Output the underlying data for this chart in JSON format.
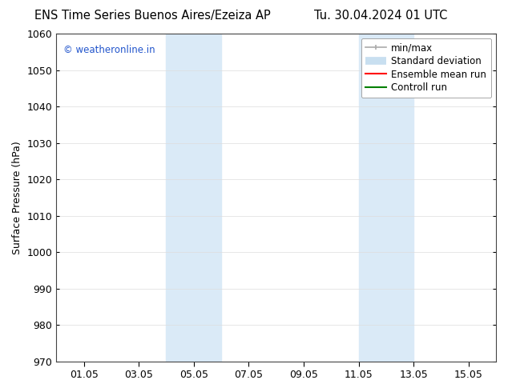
{
  "title_left": "ENS Time Series Buenos Aires/Ezeiza AP",
  "title_right": "Tu. 30.04.2024 01 UTC",
  "ylabel": "Surface Pressure (hPa)",
  "ylim": [
    970,
    1060
  ],
  "yticks": [
    970,
    980,
    990,
    1000,
    1010,
    1020,
    1030,
    1040,
    1050,
    1060
  ],
  "xlim": [
    0,
    16
  ],
  "xtick_labels": [
    "01.05",
    "03.05",
    "05.05",
    "07.05",
    "09.05",
    "11.05",
    "13.05",
    "15.05"
  ],
  "xtick_positions": [
    1,
    3,
    5,
    7,
    9,
    11,
    13,
    15
  ],
  "shaded_bands": [
    {
      "xmin": 4.0,
      "xmax": 6.0
    },
    {
      "xmin": 11.0,
      "xmax": 13.0
    }
  ],
  "shaded_color": "#daeaf7",
  "watermark": "© weatheronline.in",
  "watermark_color": "#2255cc",
  "legend_items": [
    {
      "label": "min/max",
      "color": "#aaaaaa",
      "lw": 1.2,
      "style": "cap"
    },
    {
      "label": "Standard deviation",
      "color": "#c8dff0",
      "lw": 7,
      "style": "bar"
    },
    {
      "label": "Ensemble mean run",
      "color": "red",
      "lw": 1.5,
      "style": "line"
    },
    {
      "label": "Controll run",
      "color": "green",
      "lw": 1.5,
      "style": "line"
    }
  ],
  "bg_color": "#ffffff",
  "grid_color": "#dddddd",
  "title_fontsize": 10.5,
  "axis_fontsize": 9,
  "tick_fontsize": 9,
  "legend_fontsize": 8.5
}
